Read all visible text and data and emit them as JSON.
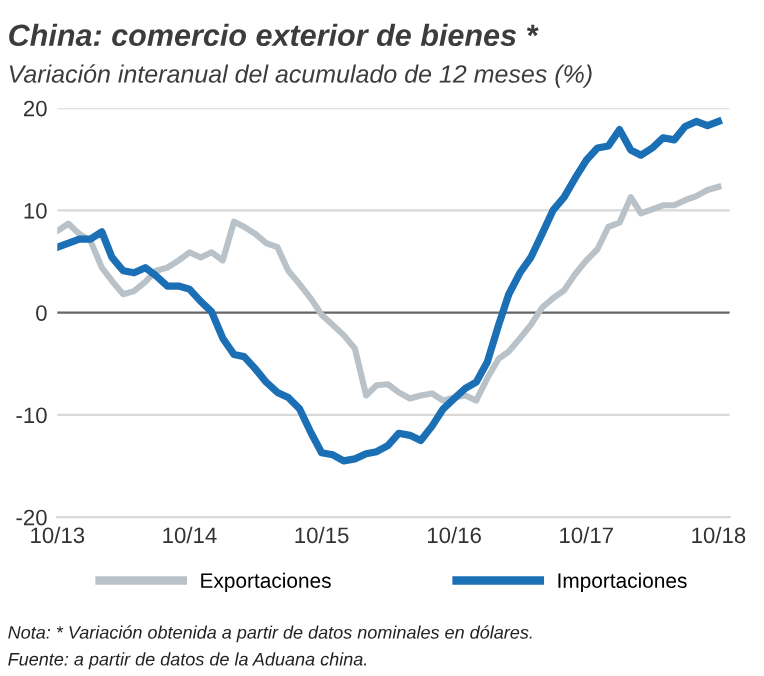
{
  "chart_data": {
    "type": "line",
    "title": "China: comercio exterior de bienes *",
    "subtitle": "Variación interanual del acumulado de 12 meses (%)",
    "annotations": [
      "Nota: * Variación obtenida a partir de datos nominales en dólares.",
      "Fuente: a partir de datos de la Aduana china."
    ],
    "x": [
      "2013-10",
      "2013-11",
      "2013-12",
      "2014-01",
      "2014-02",
      "2014-03",
      "2014-04",
      "2014-05",
      "2014-06",
      "2014-07",
      "2014-08",
      "2014-09",
      "2014-10",
      "2014-11",
      "2014-12",
      "2015-01",
      "2015-02",
      "2015-03",
      "2015-04",
      "2015-05",
      "2015-06",
      "2015-07",
      "2015-08",
      "2015-09",
      "2015-10",
      "2015-11",
      "2015-12",
      "2016-01",
      "2016-02",
      "2016-03",
      "2016-04",
      "2016-05",
      "2016-06",
      "2016-07",
      "2016-08",
      "2016-09",
      "2016-10",
      "2016-11",
      "2016-12",
      "2017-01",
      "2017-02",
      "2017-03",
      "2017-04",
      "2017-05",
      "2017-06",
      "2017-07",
      "2017-08",
      "2017-09",
      "2017-10",
      "2017-11",
      "2017-12",
      "2018-01",
      "2018-02",
      "2018-03",
      "2018-04",
      "2018-05",
      "2018-06",
      "2018-07",
      "2018-08",
      "2018-09",
      "2018-10"
    ],
    "series": [
      {
        "name": "Exportaciones",
        "color": "#b8c2c8",
        "values": [
          8.0,
          8.7,
          7.7,
          7.0,
          4.4,
          3.1,
          1.8,
          2.1,
          3.0,
          4.1,
          4.4,
          5.1,
          5.9,
          5.4,
          5.9,
          5.1,
          8.9,
          8.4,
          7.7,
          6.8,
          6.4,
          4.1,
          2.8,
          1.4,
          -0.2,
          -1.2,
          -2.2,
          -3.5,
          -8.1,
          -7.1,
          -7.0,
          -7.8,
          -8.4,
          -8.1,
          -7.9,
          -8.6,
          -8.3,
          -8.1,
          -8.6,
          -6.4,
          -4.5,
          -3.8,
          -2.5,
          -1.2,
          0.5,
          1.4,
          2.2,
          3.8,
          5.1,
          6.2,
          8.4,
          8.8,
          11.3,
          9.7,
          10.1,
          10.5,
          10.5,
          11.0,
          11.4,
          12.0,
          12.3
        ]
      },
      {
        "name": "Importaciones",
        "color": "#1a6fb5",
        "values": [
          6.4,
          6.8,
          7.2,
          7.2,
          7.9,
          5.4,
          4.1,
          3.9,
          4.4,
          3.6,
          2.6,
          2.6,
          2.3,
          1.1,
          0.1,
          -2.5,
          -4.1,
          -4.3,
          -5.5,
          -6.8,
          -7.8,
          -8.3,
          -9.4,
          -11.7,
          -13.7,
          -13.9,
          -14.5,
          -14.3,
          -13.8,
          -13.6,
          -13.0,
          -11.8,
          -12.0,
          -12.5,
          -11.1,
          -9.4,
          -8.4,
          -7.4,
          -6.8,
          -4.8,
          -1.2,
          1.8,
          3.9,
          5.4,
          7.7,
          10.0,
          11.3,
          13.2,
          14.9,
          16.1,
          16.3,
          17.9,
          15.9,
          15.4,
          16.1,
          17.1,
          16.9,
          18.2,
          18.7,
          18.3,
          18.7
        ]
      }
    ],
    "xlim": [
      "2013-10",
      "2018-11"
    ],
    "xticks": [
      {
        "value": "2013-10",
        "label": "10/13"
      },
      {
        "value": "2014-10",
        "label": "10/14"
      },
      {
        "value": "2015-10",
        "label": "10/15"
      },
      {
        "value": "2016-10",
        "label": "10/16"
      },
      {
        "value": "2017-10",
        "label": "10/17"
      },
      {
        "value": "2018-10",
        "label": "10/18"
      }
    ],
    "ylim": [
      -20,
      20
    ],
    "yticks": [
      -20,
      -10,
      0,
      10,
      20
    ],
    "grid": "y",
    "legend": "bottom",
    "marker": "none",
    "line_style": "solid"
  }
}
